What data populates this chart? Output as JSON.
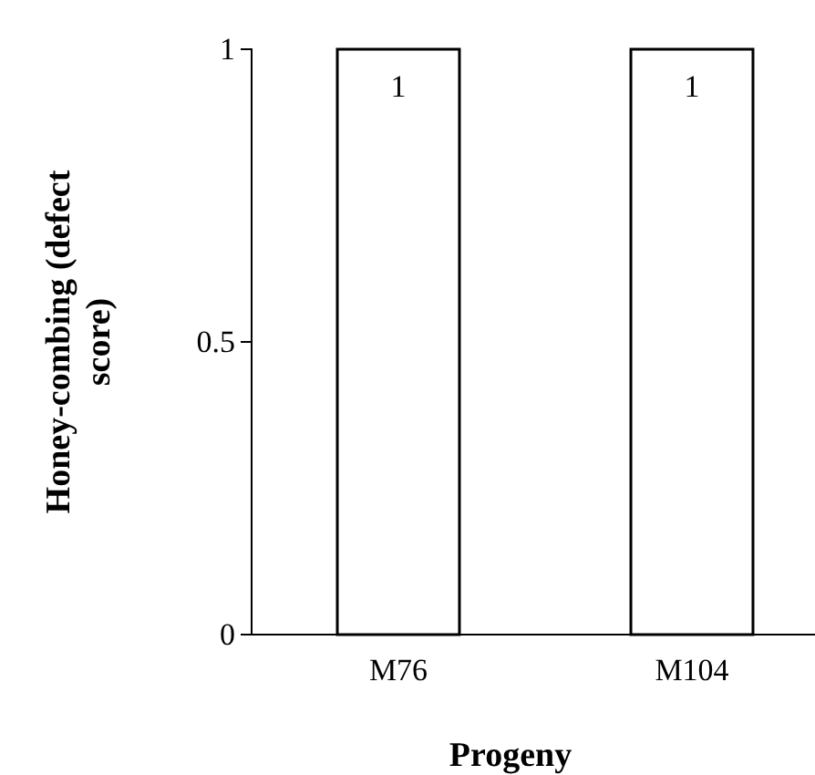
{
  "chart_data": {
    "type": "bar",
    "xlabel": "Progeny",
    "ylabel": "Honey-combing (defect score)",
    "categories": [
      "M76",
      "M104"
    ],
    "values": [
      1,
      1
    ],
    "color": "#ffffff",
    "ylim": [
      0,
      1
    ],
    "yticks": [
      0,
      0.5,
      1
    ],
    "data_labels": true,
    "grid": false
  }
}
